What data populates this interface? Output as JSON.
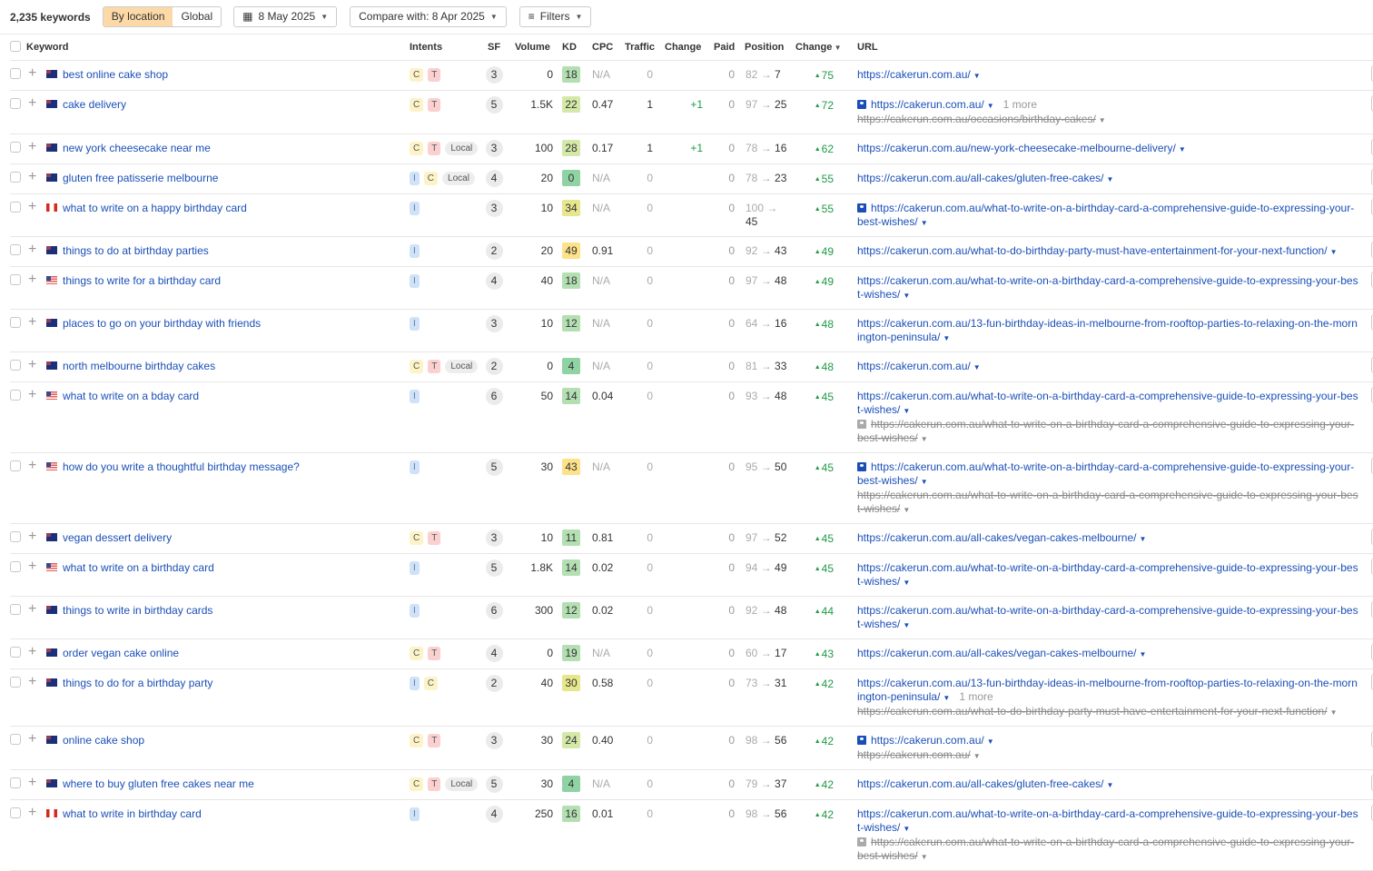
{
  "toolbar": {
    "count": "2,235 keywords",
    "by_location": "By location",
    "global": "Global",
    "date": "8 May 2025",
    "compare": "Compare with: 8 Apr 2025",
    "filters": "Filters"
  },
  "columns": {
    "keyword": "Keyword",
    "intents": "Intents",
    "sf": "SF",
    "volume": "Volume",
    "kd": "KD",
    "cpc": "CPC",
    "traffic": "Traffic",
    "change": "Change",
    "paid": "Paid",
    "position": "Position",
    "position_change": "Change",
    "url": "URL"
  },
  "colors": {
    "link": "#1a4fb8",
    "positive": "#1f9a45",
    "active_segment": "#fdd9a8"
  },
  "rows": [
    {
      "country": "AU",
      "keyword": "best online cake shop",
      "intents": [
        "C",
        "T"
      ],
      "sf": "3",
      "volume": "0",
      "kd": 18,
      "cpc": "N/A",
      "traffic": "0",
      "change": "",
      "paid": "0",
      "pos_from": "82",
      "pos_to": "7",
      "pos_change": "75",
      "urls": [
        {
          "text": "https://cakerun.com.au/"
        }
      ]
    },
    {
      "country": "AU",
      "keyword": "cake delivery",
      "intents": [
        "C",
        "T"
      ],
      "sf": "5",
      "volume": "1.5K",
      "kd": 22,
      "cpc": "0.47",
      "traffic": "1",
      "change": "+1",
      "paid": "0",
      "pos_from": "97",
      "pos_to": "25",
      "pos_change": "72",
      "urls": [
        {
          "text": "https://cakerun.com.au/",
          "image": true,
          "more": "1 more"
        },
        {
          "text": "https://cakerun.com.au/occasions/birthday-cakes/",
          "struck": true
        }
      ]
    },
    {
      "country": "AU",
      "keyword": "new york cheesecake near me",
      "intents": [
        "C",
        "T",
        "Local"
      ],
      "sf": "3",
      "volume": "100",
      "kd": 28,
      "cpc": "0.17",
      "traffic": "1",
      "change": "+1",
      "paid": "0",
      "pos_from": "78",
      "pos_to": "16",
      "pos_change": "62",
      "urls": [
        {
          "text": "https://cakerun.com.au/new-york-cheesecake-melbourne-delivery/"
        }
      ]
    },
    {
      "country": "AU",
      "keyword": "gluten free patisserie melbourne",
      "intents": [
        "I",
        "C",
        "Local"
      ],
      "sf": "4",
      "volume": "20",
      "kd": 0,
      "cpc": "N/A",
      "traffic": "0",
      "change": "",
      "paid": "0",
      "pos_from": "78",
      "pos_to": "23",
      "pos_change": "55",
      "urls": [
        {
          "text": "https://cakerun.com.au/all-cakes/gluten-free-cakes/"
        }
      ]
    },
    {
      "country": "CA",
      "keyword": "what to write on a happy birthday card",
      "intents": [
        "I"
      ],
      "sf": "3",
      "volume": "10",
      "kd": 34,
      "cpc": "N/A",
      "traffic": "0",
      "change": "",
      "paid": "0",
      "pos_from": "100",
      "pos_to": "45",
      "pos_change": "55",
      "urls": [
        {
          "text": "https://cakerun.com.au/what-to-write-on-a-birthday-card-a-comprehensive-guide-to-expressing-your-best-wishes/",
          "image": true
        }
      ]
    },
    {
      "country": "AU",
      "keyword": "things to do at birthday parties",
      "intents": [
        "I"
      ],
      "sf": "2",
      "volume": "20",
      "kd": 49,
      "cpc": "0.91",
      "traffic": "0",
      "change": "",
      "paid": "0",
      "pos_from": "92",
      "pos_to": "43",
      "pos_change": "49",
      "urls": [
        {
          "text": "https://cakerun.com.au/what-to-do-birthday-party-must-have-entertainment-for-your-next-function/"
        }
      ]
    },
    {
      "country": "US",
      "keyword": "things to write for a birthday card",
      "intents": [
        "I"
      ],
      "sf": "4",
      "volume": "40",
      "kd": 18,
      "cpc": "N/A",
      "traffic": "0",
      "change": "",
      "paid": "0",
      "pos_from": "97",
      "pos_to": "48",
      "pos_change": "49",
      "urls": [
        {
          "text": "https://cakerun.com.au/what-to-write-on-a-birthday-card-a-comprehensive-guide-to-expressing-your-best-wishes/"
        }
      ]
    },
    {
      "country": "AU",
      "keyword": "places to go on your birthday with friends",
      "intents": [
        "I"
      ],
      "sf": "3",
      "volume": "10",
      "kd": 12,
      "cpc": "N/A",
      "traffic": "0",
      "change": "",
      "paid": "0",
      "pos_from": "64",
      "pos_to": "16",
      "pos_change": "48",
      "urls": [
        {
          "text": "https://cakerun.com.au/13-fun-birthday-ideas-in-melbourne-from-rooftop-parties-to-relaxing-on-the-mornington-peninsula/"
        }
      ]
    },
    {
      "country": "AU",
      "keyword": "north melbourne birthday cakes",
      "intents": [
        "C",
        "T",
        "Local"
      ],
      "sf": "2",
      "volume": "0",
      "kd": 4,
      "cpc": "N/A",
      "traffic": "0",
      "change": "",
      "paid": "0",
      "pos_from": "81",
      "pos_to": "33",
      "pos_change": "48",
      "urls": [
        {
          "text": "https://cakerun.com.au/"
        }
      ]
    },
    {
      "country": "US",
      "keyword": "what to write on a bday card",
      "intents": [
        "I"
      ],
      "sf": "6",
      "volume": "50",
      "kd": 14,
      "cpc": "0.04",
      "traffic": "0",
      "change": "",
      "paid": "0",
      "pos_from": "93",
      "pos_to": "48",
      "pos_change": "45",
      "urls": [
        {
          "text": "https://cakerun.com.au/what-to-write-on-a-birthday-card-a-comprehensive-guide-to-expressing-your-best-wishes/"
        },
        {
          "text": "https://cakerun.com.au/what-to-write-on-a-birthday-card-a-comprehensive-guide-to-expressing-your-best-wishes/",
          "struck": true,
          "image": true
        }
      ]
    },
    {
      "country": "US",
      "keyword": "how do you write a thoughtful birthday message?",
      "intents": [
        "I"
      ],
      "sf": "5",
      "volume": "30",
      "kd": 43,
      "cpc": "N/A",
      "traffic": "0",
      "change": "",
      "paid": "0",
      "pos_from": "95",
      "pos_to": "50",
      "pos_change": "45",
      "urls": [
        {
          "text": "https://cakerun.com.au/what-to-write-on-a-birthday-card-a-comprehensive-guide-to-expressing-your-best-wishes/",
          "image": true
        },
        {
          "text": "https://cakerun.com.au/what-to-write-on-a-birthday-card-a-comprehensive-guide-to-expressing-your-best-wishes/",
          "struck": true
        }
      ]
    },
    {
      "country": "AU",
      "keyword": "vegan dessert delivery",
      "intents": [
        "C",
        "T"
      ],
      "sf": "3",
      "volume": "10",
      "kd": 11,
      "cpc": "0.81",
      "traffic": "0",
      "change": "",
      "paid": "0",
      "pos_from": "97",
      "pos_to": "52",
      "pos_change": "45",
      "urls": [
        {
          "text": "https://cakerun.com.au/all-cakes/vegan-cakes-melbourne/"
        }
      ]
    },
    {
      "country": "US",
      "keyword": "what to write on a birthday card",
      "intents": [
        "I"
      ],
      "sf": "5",
      "volume": "1.8K",
      "kd": 14,
      "cpc": "0.02",
      "traffic": "0",
      "change": "",
      "paid": "0",
      "pos_from": "94",
      "pos_to": "49",
      "pos_change": "45",
      "urls": [
        {
          "text": "https://cakerun.com.au/what-to-write-on-a-birthday-card-a-comprehensive-guide-to-expressing-your-best-wishes/"
        }
      ]
    },
    {
      "country": "AU",
      "keyword": "things to write in birthday cards",
      "intents": [
        "I"
      ],
      "sf": "6",
      "volume": "300",
      "kd": 12,
      "cpc": "0.02",
      "traffic": "0",
      "change": "",
      "paid": "0",
      "pos_from": "92",
      "pos_to": "48",
      "pos_change": "44",
      "urls": [
        {
          "text": "https://cakerun.com.au/what-to-write-on-a-birthday-card-a-comprehensive-guide-to-expressing-your-best-wishes/"
        }
      ]
    },
    {
      "country": "AU",
      "keyword": "order vegan cake online",
      "intents": [
        "C",
        "T"
      ],
      "sf": "4",
      "volume": "0",
      "kd": 19,
      "cpc": "N/A",
      "traffic": "0",
      "change": "",
      "paid": "0",
      "pos_from": "60",
      "pos_to": "17",
      "pos_change": "43",
      "urls": [
        {
          "text": "https://cakerun.com.au/all-cakes/vegan-cakes-melbourne/"
        }
      ]
    },
    {
      "country": "AU",
      "keyword": "things to do for a birthday party",
      "intents": [
        "I",
        "C"
      ],
      "sf": "2",
      "volume": "40",
      "kd": 30,
      "cpc": "0.58",
      "traffic": "0",
      "change": "",
      "paid": "0",
      "pos_from": "73",
      "pos_to": "31",
      "pos_change": "42",
      "urls": [
        {
          "text": "https://cakerun.com.au/13-fun-birthday-ideas-in-melbourne-from-rooftop-parties-to-relaxing-on-the-mornington-peninsula/",
          "more": "1 more"
        },
        {
          "text": "https://cakerun.com.au/what-to-do-birthday-party-must-have-entertainment-for-your-next-function/",
          "struck": true
        }
      ]
    },
    {
      "country": "AU",
      "keyword": "online cake shop",
      "intents": [
        "C",
        "T"
      ],
      "sf": "3",
      "volume": "30",
      "kd": 24,
      "cpc": "0.40",
      "traffic": "0",
      "change": "",
      "paid": "0",
      "pos_from": "98",
      "pos_to": "56",
      "pos_change": "42",
      "urls": [
        {
          "text": "https://cakerun.com.au/",
          "image": true
        },
        {
          "text": "https://cakerun.com.au/",
          "struck": true
        }
      ]
    },
    {
      "country": "AU",
      "keyword": "where to buy gluten free cakes near me",
      "intents": [
        "C",
        "T",
        "Local"
      ],
      "sf": "5",
      "volume": "30",
      "kd": 4,
      "cpc": "N/A",
      "traffic": "0",
      "change": "",
      "paid": "0",
      "pos_from": "79",
      "pos_to": "37",
      "pos_change": "42",
      "urls": [
        {
          "text": "https://cakerun.com.au/all-cakes/gluten-free-cakes/"
        }
      ]
    },
    {
      "country": "CA",
      "keyword": "what to write in birthday card",
      "intents": [
        "I"
      ],
      "sf": "4",
      "volume": "250",
      "kd": 16,
      "cpc": "0.01",
      "traffic": "0",
      "change": "",
      "paid": "0",
      "pos_from": "98",
      "pos_to": "56",
      "pos_change": "42",
      "urls": [
        {
          "text": "https://cakerun.com.au/what-to-write-on-a-birthday-card-a-comprehensive-guide-to-expressing-your-best-wishes/"
        },
        {
          "text": "https://cakerun.com.au/what-to-write-on-a-birthday-card-a-comprehensive-guide-to-expressing-your-best-wishes/",
          "struck": true,
          "image": true
        }
      ]
    }
  ]
}
